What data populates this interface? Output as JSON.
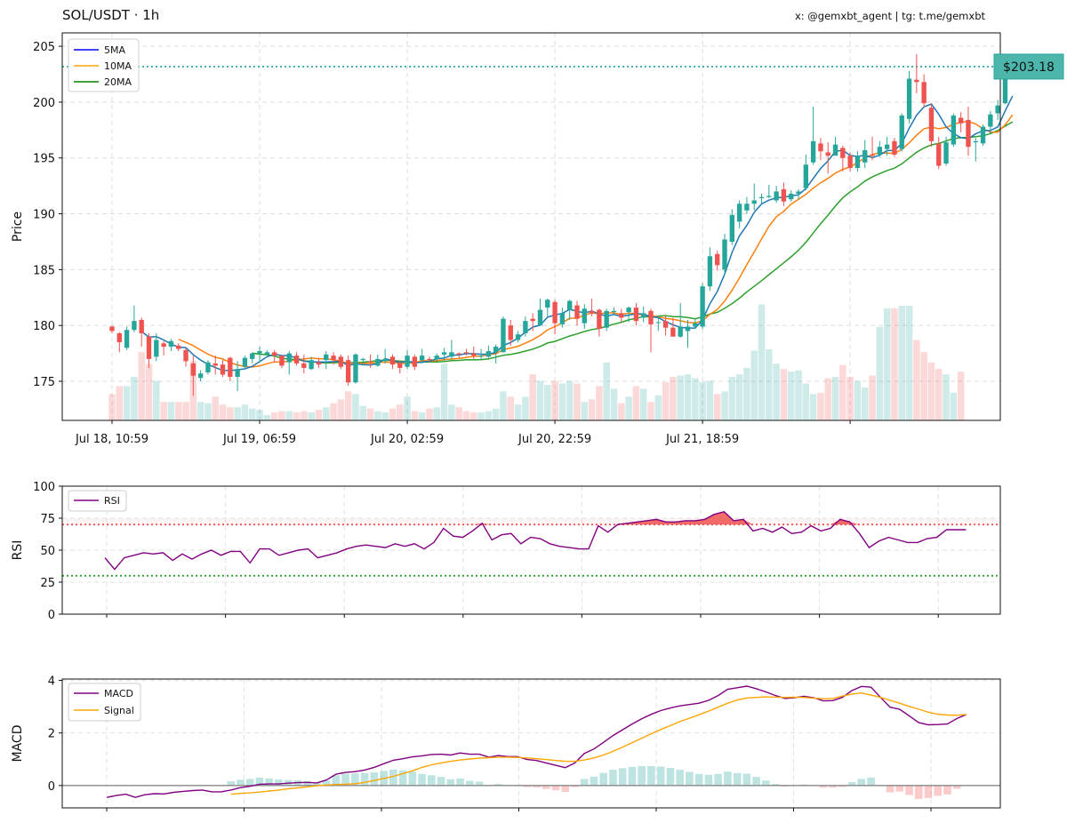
{
  "header": {
    "title": "SOL/USDT · 1h",
    "credit": "x: @gemxbt_agent | tg: t.me/gemxbt"
  },
  "colors": {
    "up": "#26a69a",
    "down": "#ef5350",
    "ma5": "#1f77b4",
    "ma10": "#ff7f0e",
    "ma20": "#2ca02c",
    "legend_ma5": "#0000ff",
    "legend_ma10": "#ffa500",
    "legend_ma20": "#008000",
    "rsi": "#800080",
    "macd": "#800080",
    "signal": "#ffa500",
    "overbought": "#ef5350",
    "oversold": "#2ca02c",
    "price_tag_bg": "#4db6ac"
  },
  "chart_data": [
    {
      "id": "price",
      "type": "candlestick",
      "ylabel": "Price",
      "ylim": [
        171.5,
        206.2
      ],
      "yticks": [
        175,
        180,
        185,
        190,
        195,
        200,
        205
      ],
      "xticks": [
        {
          "i": 0,
          "label": "Jul 18, 10:59"
        },
        {
          "i": 20,
          "label": "Jul 19, 06:59"
        },
        {
          "i": 40,
          "label": "Jul 20, 02:59"
        },
        {
          "i": 60,
          "label": "Jul 20, 22:59"
        },
        {
          "i": 80,
          "label": "Jul 21, 18:59"
        },
        {
          "i": 100,
          "label": ""
        }
      ],
      "grid": true,
      "legend": {
        "position": "top-left",
        "entries": [
          "5MA",
          "10MA",
          "20MA"
        ]
      },
      "last_price": 203.18,
      "last_price_label": "$203.18",
      "candles": [
        [
          179.9,
          179.5,
          180.0,
          179.3
        ],
        [
          179.3,
          178.5,
          179.4,
          177.6
        ],
        [
          178.0,
          179.6,
          179.9,
          177.8
        ],
        [
          179.6,
          180.4,
          181.8,
          179.4
        ],
        [
          180.5,
          179.3,
          180.7,
          178.1
        ],
        [
          179.0,
          177.0,
          179.3,
          176.2
        ],
        [
          177.2,
          178.7,
          179.3,
          176.8
        ],
        [
          178.4,
          178.1,
          178.6,
          177.3
        ],
        [
          178.1,
          178.6,
          178.8,
          177.7
        ],
        [
          178.2,
          177.9,
          178.4,
          177.7
        ],
        [
          177.8,
          176.8,
          178.0,
          176.3
        ],
        [
          176.6,
          175.5,
          177.3,
          173.7
        ],
        [
          175.3,
          175.7,
          176.0,
          175.0
        ],
        [
          175.8,
          176.7,
          176.9,
          175.6
        ],
        [
          176.6,
          176.4,
          177.3,
          175.6
        ],
        [
          176.5,
          175.6,
          176.9,
          175.4
        ],
        [
          177.1,
          175.4,
          177.2,
          175.0
        ],
        [
          175.4,
          176.1,
          176.8,
          174.1
        ],
        [
          176.3,
          177.1,
          177.3,
          176.1
        ],
        [
          177.0,
          177.5,
          177.6,
          176.6
        ],
        [
          177.5,
          177.7,
          178.1,
          176.7
        ],
        [
          177.4,
          177.6,
          177.8,
          177.3
        ],
        [
          177.6,
          177.3,
          177.8,
          176.7
        ],
        [
          177.3,
          176.4,
          177.3,
          176.2
        ],
        [
          176.7,
          177.5,
          177.7,
          175.6
        ],
        [
          177.3,
          176.6,
          177.6,
          176.4
        ],
        [
          176.6,
          176.2,
          177.4,
          175.7
        ],
        [
          176.1,
          176.9,
          177.2,
          176.0
        ],
        [
          176.7,
          176.5,
          177.1,
          176.2
        ],
        [
          176.9,
          177.4,
          177.7,
          176.1
        ],
        [
          177.3,
          176.9,
          177.6,
          176.5
        ],
        [
          177.2,
          176.3,
          177.4,
          176.1
        ],
        [
          176.9,
          174.9,
          177.3,
          174.6
        ],
        [
          174.9,
          177.4,
          177.5,
          174.8
        ],
        [
          176.9,
          177.0,
          177.1,
          176.4
        ],
        [
          176.8,
          176.7,
          177.4,
          176.2
        ],
        [
          176.4,
          177.0,
          177.4,
          176.3
        ],
        [
          176.8,
          177.0,
          177.9,
          176.6
        ],
        [
          177.2,
          176.5,
          177.4,
          176.1
        ],
        [
          176.6,
          176.2,
          176.9,
          175.7
        ],
        [
          176.3,
          177.3,
          177.8,
          176.1
        ],
        [
          177.2,
          176.3,
          177.4,
          176.0
        ],
        [
          176.9,
          177.3,
          177.9,
          176.6
        ],
        [
          177.0,
          176.9,
          177.2,
          176.7
        ],
        [
          177.0,
          177.3,
          177.5,
          176.8
        ],
        [
          177.4,
          177.6,
          178.0,
          176.8
        ],
        [
          177.2,
          177.6,
          178.7,
          176.8
        ],
        [
          177.5,
          177.4,
          177.6,
          177.1
        ],
        [
          177.6,
          177.5,
          177.9,
          177.3
        ],
        [
          177.5,
          177.3,
          178.1,
          177.0
        ],
        [
          177.3,
          177.3,
          177.9,
          177.0
        ],
        [
          177.2,
          177.7,
          178.2,
          177.1
        ],
        [
          177.6,
          178.1,
          178.3,
          176.6
        ],
        [
          177.6,
          180.6,
          180.8,
          177.6
        ],
        [
          180.0,
          178.7,
          180.5,
          178.2
        ],
        [
          178.7,
          179.2,
          179.5,
          178.5
        ],
        [
          179.3,
          180.4,
          180.8,
          179.0
        ],
        [
          180.6,
          180.4,
          181.1,
          179.5
        ],
        [
          180.0,
          181.4,
          182.4,
          180.0
        ],
        [
          181.6,
          182.3,
          182.4,
          180.7
        ],
        [
          182.1,
          180.2,
          182.3,
          179.2
        ],
        [
          180.1,
          181.1,
          181.6,
          179.8
        ],
        [
          181.4,
          182.2,
          182.3,
          180.5
        ],
        [
          181.8,
          180.6,
          182.2,
          180.0
        ],
        [
          180.2,
          181.5,
          181.9,
          179.7
        ],
        [
          181.3,
          181.1,
          182.4,
          180.8
        ],
        [
          181.4,
          179.7,
          181.5,
          179.0
        ],
        [
          179.8,
          181.3,
          181.5,
          179.5
        ],
        [
          181.2,
          181.3,
          181.6,
          181.0
        ],
        [
          181.1,
          180.7,
          181.5,
          180.3
        ],
        [
          181.2,
          181.6,
          181.7,
          180.3
        ],
        [
          181.6,
          180.4,
          182.0,
          180.0
        ],
        [
          180.7,
          181.1,
          181.7,
          180.3
        ],
        [
          181.3,
          180.1,
          181.5,
          177.6
        ],
        [
          180.3,
          180.3,
          180.9,
          179.5
        ],
        [
          180.4,
          179.8,
          180.9,
          179.1
        ],
        [
          179.8,
          179.0,
          180.7,
          179.4
        ],
        [
          179.0,
          179.9,
          182.0,
          178.9
        ],
        [
          179.5,
          179.9,
          180.5,
          178.0
        ],
        [
          179.9,
          180.2,
          180.6,
          179.7
        ],
        [
          179.9,
          183.5,
          183.8,
          179.7
        ],
        [
          183.5,
          186.2,
          187.0,
          183.1
        ],
        [
          186.4,
          185.4,
          186.7,
          184.9
        ],
        [
          185.0,
          187.7,
          188.2,
          184.5
        ],
        [
          187.5,
          189.9,
          190.4,
          187.2
        ],
        [
          189.3,
          190.9,
          191.2,
          188.7
        ],
        [
          190.3,
          190.9,
          191.5,
          190.0
        ],
        [
          190.9,
          191.2,
          192.7,
          190.3
        ],
        [
          191.4,
          191.5,
          191.8,
          190.9
        ],
        [
          191.5,
          191.6,
          192.6,
          191.4
        ],
        [
          191.2,
          192.0,
          192.5,
          191.0
        ],
        [
          192.2,
          191.1,
          192.8,
          190.7
        ],
        [
          191.3,
          191.8,
          192.1,
          191.1
        ],
        [
          191.8,
          192.0,
          192.2,
          191.3
        ],
        [
          192.3,
          194.4,
          195.3,
          192.1
        ],
        [
          194.6,
          196.5,
          199.6,
          194.4
        ],
        [
          196.3,
          195.6,
          196.8,
          194.8
        ],
        [
          195.5,
          195.2,
          196.4,
          193.6
        ],
        [
          195.2,
          196.2,
          196.9,
          195.3
        ],
        [
          195.9,
          195.0,
          196.1,
          193.8
        ],
        [
          195.2,
          194.1,
          195.5,
          193.8
        ],
        [
          194.1,
          195.2,
          195.6,
          193.8
        ],
        [
          194.6,
          195.7,
          196.6,
          194.1
        ],
        [
          195.3,
          195.2,
          196.9,
          194.8
        ],
        [
          195.3,
          196.0,
          196.5,
          195.1
        ],
        [
          195.8,
          196.2,
          196.9,
          195.2
        ],
        [
          196.5,
          195.3,
          196.8,
          195.1
        ],
        [
          195.8,
          198.8,
          199.0,
          195.6
        ],
        [
          198.5,
          202.1,
          202.8,
          198.1
        ],
        [
          202.0,
          201.8,
          204.3,
          200.8
        ],
        [
          201.8,
          199.9,
          202.5,
          199.5
        ],
        [
          199.5,
          196.5,
          199.9,
          196.0
        ],
        [
          196.3,
          194.3,
          196.9,
          194.0
        ],
        [
          194.5,
          196.4,
          196.9,
          194.3
        ],
        [
          196.2,
          198.8,
          199.0,
          196.0
        ],
        [
          198.6,
          198.1,
          199.1,
          197.3
        ],
        [
          198.4,
          196.0,
          199.6,
          195.2
        ],
        [
          196.4,
          196.5,
          196.8,
          194.7
        ],
        [
          196.3,
          197.8,
          198.0,
          196.1
        ],
        [
          197.8,
          198.9,
          199.2,
          197.1
        ],
        [
          199.0,
          199.7,
          200.2,
          198.4
        ],
        [
          199.9,
          203.2,
          203.8,
          199.8
        ],
        [
          203.1,
          203.2,
          203.5,
          202.6
        ]
      ],
      "volume": [
        0.2,
        0.26,
        0.26,
        0.33,
        0.52,
        0.43,
        0.3,
        0.14,
        0.14,
        0.14,
        0.14,
        0.45,
        0.14,
        0.13,
        0.18,
        0.12,
        0.1,
        0.1,
        0.12,
        0.09,
        0.08,
        0.04,
        0.06,
        0.07,
        0.07,
        0.06,
        0.07,
        0.06,
        0.08,
        0.1,
        0.13,
        0.16,
        0.22,
        0.2,
        0.11,
        0.09,
        0.07,
        0.06,
        0.09,
        0.12,
        0.18,
        0.07,
        0.06,
        0.09,
        0.1,
        0.43,
        0.12,
        0.1,
        0.07,
        0.06,
        0.06,
        0.07,
        0.09,
        0.22,
        0.18,
        0.12,
        0.18,
        0.35,
        0.3,
        0.27,
        0.3,
        0.28,
        0.3,
        0.28,
        0.14,
        0.16,
        0.26,
        0.44,
        0.24,
        0.13,
        0.18,
        0.26,
        0.24,
        0.14,
        0.19,
        0.29,
        0.33,
        0.34,
        0.35,
        0.32,
        0.29,
        0.3,
        0.2,
        0.22,
        0.33,
        0.35,
        0.4,
        0.53,
        0.88,
        0.54,
        0.43,
        0.39,
        0.37,
        0.38,
        0.28,
        0.2,
        0.21,
        0.32,
        0.33,
        0.42,
        0.33,
        0.3,
        0.25,
        0.34,
        0.71,
        0.85,
        0.85,
        0.87,
        0.87,
        0.61,
        0.52,
        0.44,
        0.39,
        0.35,
        0.21,
        0.37
      ],
      "series": [
        {
          "name": "5MA"
        },
        {
          "name": "10MA"
        },
        {
          "name": "20MA"
        }
      ]
    },
    {
      "id": "rsi",
      "type": "line",
      "ylabel": "RSI",
      "ylim": [
        0,
        100
      ],
      "yticks": [
        0,
        25,
        50,
        75,
        100
      ],
      "overbought": 70,
      "oversold": 30,
      "legend": {
        "position": "top-left",
        "entries": [
          "RSI"
        ]
      },
      "series": [
        {
          "name": "RSI",
          "start_index": 0,
          "values": [
            44,
            35,
            44,
            46,
            48,
            47,
            48,
            42,
            47,
            43,
            47,
            50,
            46,
            49,
            49,
            40,
            51,
            51,
            46,
            48,
            50,
            51,
            44,
            46,
            48,
            51,
            53,
            54,
            53,
            52,
            55,
            53,
            55,
            51,
            56,
            67,
            61,
            60,
            65,
            71,
            58,
            62,
            63,
            55,
            60,
            59,
            55,
            53,
            52,
            51,
            51,
            69,
            64,
            70,
            71,
            72,
            73,
            74,
            72,
            72,
            73,
            73,
            74,
            78,
            80,
            73,
            74,
            65,
            67,
            64,
            68,
            63,
            64,
            69,
            65,
            67,
            74,
            72,
            63,
            52,
            57,
            60,
            58,
            56,
            56,
            59,
            60,
            66,
            66,
            66
          ]
        }
      ]
    },
    {
      "id": "macd",
      "type": "line",
      "ylabel": "MACD",
      "ylim": [
        -0.85,
        4.05
      ],
      "yticks": [
        0,
        2,
        4
      ],
      "legend": {
        "position": "top-left",
        "entries": [
          "MACD",
          "Signal"
        ]
      },
      "series": [
        {
          "name": "MACD",
          "start_index": 0,
          "values": [
            -0.45,
            -0.38,
            -0.33,
            -0.45,
            -0.35,
            -0.31,
            -0.32,
            -0.26,
            -0.22,
            -0.19,
            -0.17,
            -0.24,
            -0.24,
            -0.17,
            -0.08,
            -0.03,
            0.05,
            0.06,
            0.06,
            0.09,
            0.11,
            0.12,
            0.1,
            0.21,
            0.43,
            0.5,
            0.53,
            0.59,
            0.69,
            0.83,
            0.96,
            1.02,
            1.09,
            1.13,
            1.18,
            1.19,
            1.16,
            1.24,
            1.19,
            1.19,
            1.08,
            1.14,
            1.1,
            1.1,
            0.99,
            0.95,
            0.86,
            0.77,
            0.68,
            0.86,
            1.22,
            1.39,
            1.64,
            1.9,
            2.12,
            2.34,
            2.54,
            2.71,
            2.85,
            2.95,
            3.03,
            3.08,
            3.13,
            3.24,
            3.42,
            3.66,
            3.72,
            3.78,
            3.68,
            3.56,
            3.42,
            3.31,
            3.34,
            3.39,
            3.34,
            3.22,
            3.23,
            3.35,
            3.61,
            3.77,
            3.74,
            3.35,
            2.98,
            2.9,
            2.65,
            2.39,
            2.31,
            2.32,
            2.34,
            2.55,
            2.7
          ]
        },
        {
          "name": "Signal",
          "start_index": 13,
          "values": [
            -0.33,
            -0.3,
            -0.28,
            -0.25,
            -0.21,
            -0.17,
            -0.12,
            -0.09,
            -0.05,
            -0.01,
            0.02,
            0.04,
            0.05,
            0.07,
            0.12,
            0.19,
            0.27,
            0.35,
            0.45,
            0.56,
            0.69,
            0.79,
            0.86,
            0.92,
            0.97,
            1.01,
            1.04,
            1.06,
            1.08,
            1.08,
            1.07,
            1.05,
            1.02,
            0.99,
            0.95,
            0.92,
            0.92,
            0.97,
            1.05,
            1.16,
            1.3,
            1.46,
            1.63,
            1.8,
            1.97,
            2.13,
            2.28,
            2.43,
            2.56,
            2.69,
            2.83,
            2.98,
            3.13,
            3.25,
            3.33,
            3.35,
            3.37,
            3.36,
            3.35,
            3.36,
            3.35,
            3.32,
            3.3,
            3.31,
            3.4,
            3.48,
            3.52,
            3.44,
            3.35,
            3.24,
            3.13,
            3.01,
            2.9,
            2.79,
            2.71,
            2.68,
            2.67,
            2.7
          ]
        }
      ]
    }
  ]
}
